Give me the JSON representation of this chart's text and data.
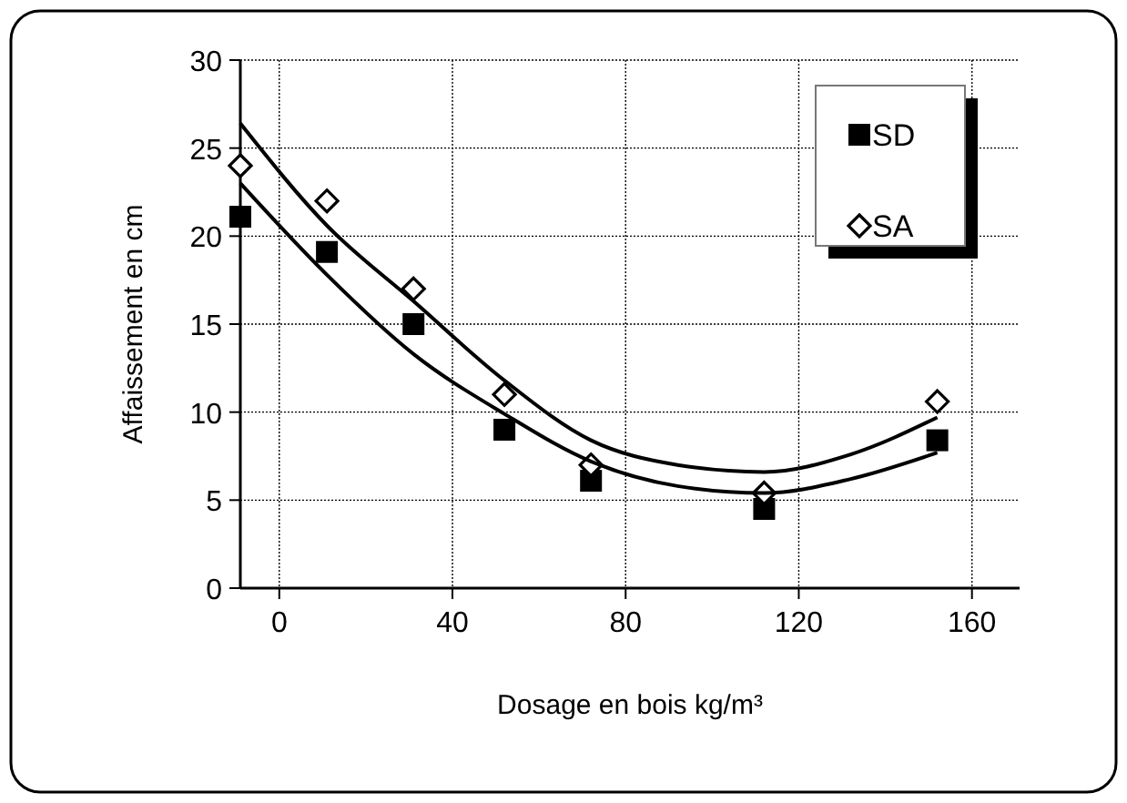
{
  "chart_data": {
    "type": "scatter",
    "xlabel": "Dosage en bois kg/m³",
    "ylabel": "Affaissement en cm",
    "xlim": [
      -9,
      171
    ],
    "xticks": [
      0,
      40,
      80,
      120,
      160
    ],
    "ylim": [
      0,
      30
    ],
    "yticks": [
      0,
      5,
      10,
      15,
      20,
      25,
      30
    ],
    "grid": true,
    "legend": "top right",
    "series": [
      {
        "name": "SD",
        "marker": "square",
        "color": "#000000",
        "x": [
          -9,
          11,
          31,
          52,
          72,
          112,
          152
        ],
        "values": [
          21.1,
          19.1,
          15,
          9,
          6.1,
          4.5,
          8.4
        ]
      },
      {
        "name": "SA",
        "marker": "diamond",
        "color": "#000000",
        "x": [
          -9,
          11,
          31,
          52,
          72,
          112,
          152
        ],
        "values": [
          24,
          22,
          17,
          11,
          7,
          5.4,
          10.6
        ]
      },
      {
        "type": "line",
        "marker": "none",
        "color": "#000000",
        "x": [
          -9,
          11,
          31,
          52,
          72,
          92,
          112,
          132,
          152
        ],
        "values": [
          26.4,
          20.6,
          16.3,
          11.8,
          8.4,
          7,
          6.6,
          7.6,
          9.7
        ]
      },
      {
        "type": "line",
        "marker": "none",
        "color": "#000000",
        "x": [
          -9,
          11,
          31,
          52,
          72,
          92,
          112,
          132,
          152
        ],
        "values": [
          23,
          17.8,
          13.3,
          9.9,
          7.2,
          5.8,
          5.4,
          6.2,
          7.7
        ]
      }
    ]
  }
}
